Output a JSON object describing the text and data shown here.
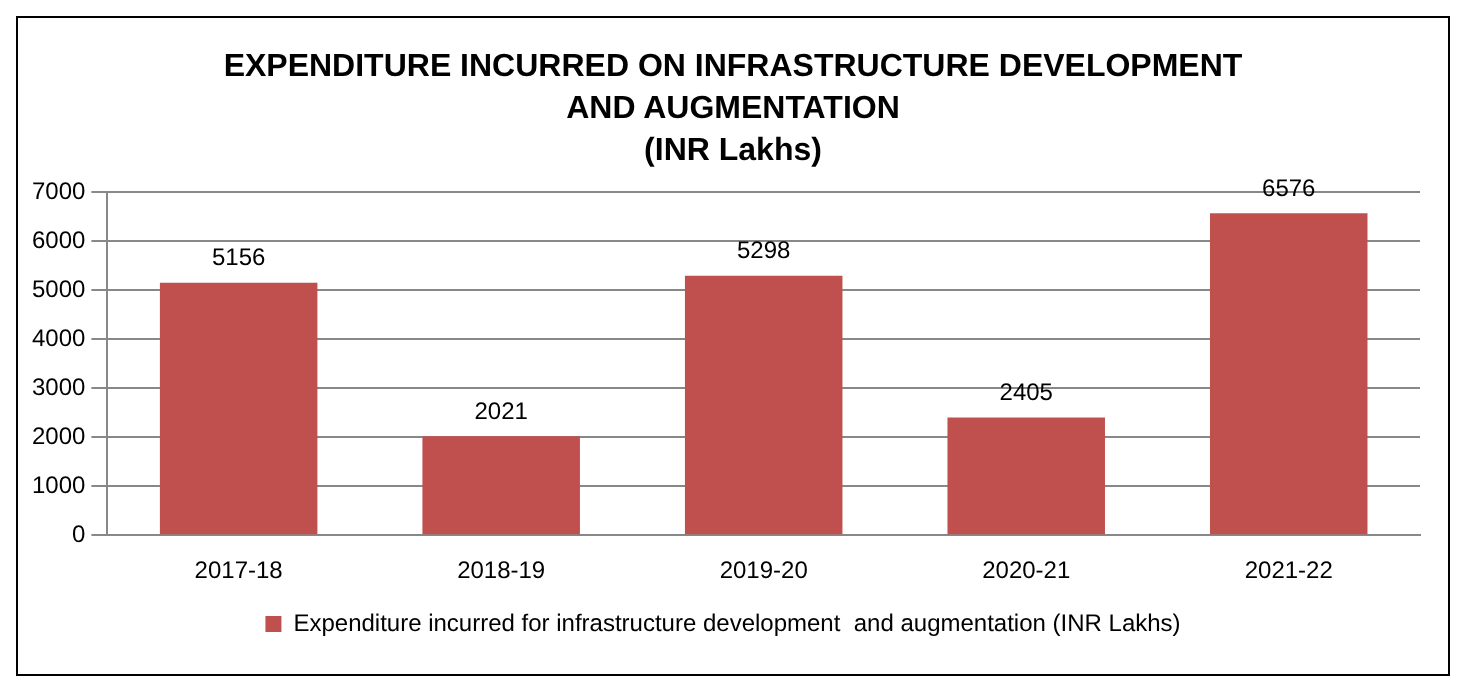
{
  "chart_data": {
    "type": "bar",
    "title": "EXPENDITURE INCURRED ON INFRASTRUCTURE DEVELOPMENT AND AUGMENTATION",
    "subtitle": "(INR Lakhs)",
    "categories": [
      "2017-18",
      "2018-19",
      "2019-20",
      "2020-21",
      "2021-22"
    ],
    "series": [
      {
        "name": "Expenditure incurred for infrastructure development  and augmentation (INR Lakhs)",
        "color": "#c0504d",
        "values": [
          5156,
          2021,
          5298,
          2405,
          6576
        ]
      }
    ],
    "ylim": [
      0,
      7000
    ],
    "yticks": [
      0,
      1000,
      2000,
      3000,
      4000,
      5000,
      6000,
      7000
    ],
    "grid": "y",
    "legend": "bottom",
    "data_labels": true
  }
}
